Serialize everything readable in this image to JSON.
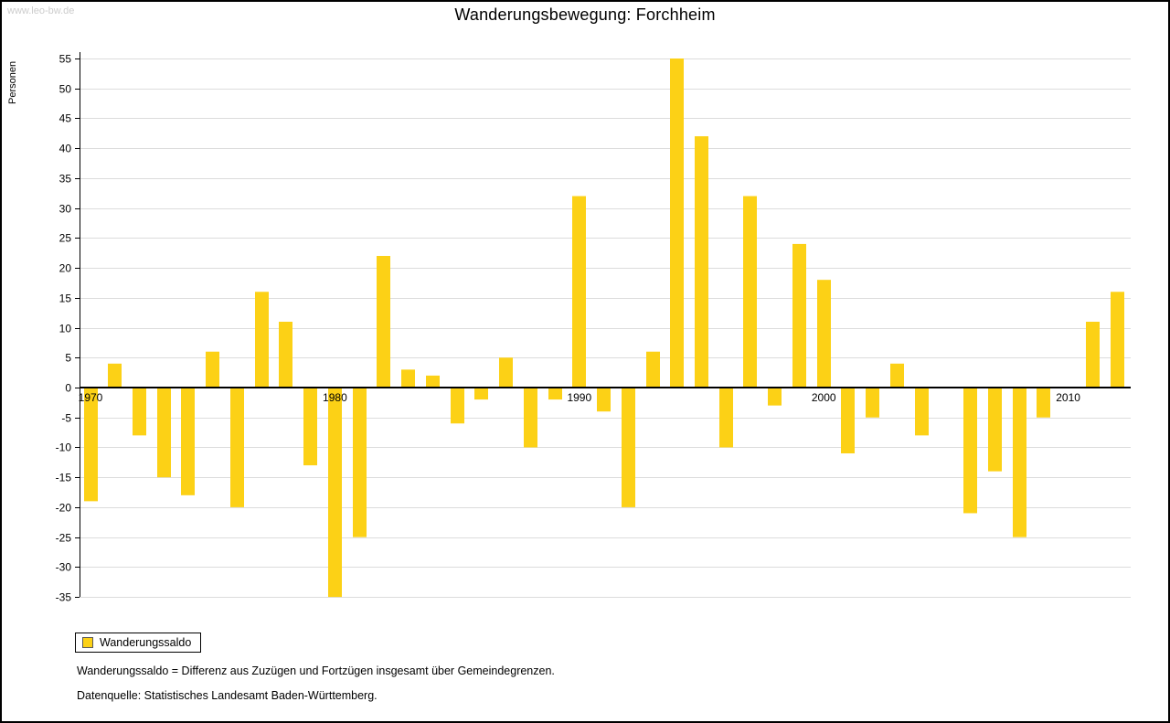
{
  "watermark": "www.leo-bw.de",
  "title": "Wanderungsbewegung: Forchheim",
  "ylabel": "Personen",
  "legend": {
    "label": "Wanderungssaldo"
  },
  "footnotes": [
    "Wanderungssaldo = Differenz aus Zuzügen und Fortzügen insgesamt über Gemeindegrenzen.",
    "Datenquelle: Statistisches Landesamt Baden-Württemberg."
  ],
  "colors": {
    "bar": "#FCD116",
    "grid": "#DCDCDC",
    "axis": "#000000",
    "watermark": "#CCCCCC"
  },
  "chart_data": {
    "type": "bar",
    "title": "Wanderungsbewegung: Forchheim",
    "xlabel": "",
    "ylabel": "Personen",
    "ylim": [
      -35,
      55
    ],
    "ytick_step": 5,
    "xticks": [
      1970,
      1980,
      1990,
      2000,
      2010
    ],
    "grid": true,
    "legend_position": "bottom-left",
    "series_name": "Wanderungssaldo",
    "years": [
      1970,
      1971,
      1972,
      1973,
      1974,
      1975,
      1976,
      1977,
      1978,
      1979,
      1980,
      1981,
      1982,
      1983,
      1984,
      1985,
      1986,
      1987,
      1988,
      1989,
      1990,
      1991,
      1992,
      1993,
      1994,
      1995,
      1996,
      1997,
      1998,
      1999,
      2000,
      2001,
      2002,
      2003,
      2004,
      2005,
      2006,
      2007,
      2008,
      2009,
      2010,
      2011,
      2012
    ],
    "values": [
      -19,
      4,
      -8,
      -15,
      -18,
      6,
      -20,
      16,
      11,
      -13,
      -35,
      -25,
      22,
      3,
      2,
      -6,
      -2,
      5,
      -10,
      -2,
      32,
      -4,
      -20,
      6,
      55,
      42,
      -10,
      32,
      -3,
      24,
      18,
      -11,
      -5,
      4,
      -8,
      0,
      -21,
      -14,
      -25,
      -5,
      0,
      11,
      16
    ]
  }
}
